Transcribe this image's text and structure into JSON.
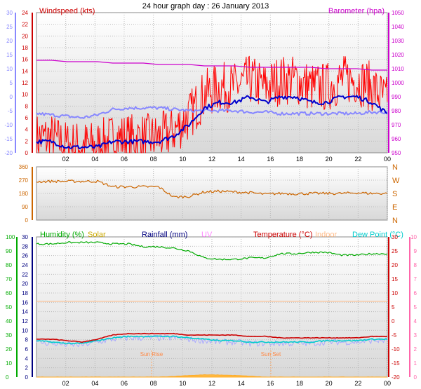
{
  "title": "24 hour graph day : 26 January 2013",
  "x_ticks": [
    "02",
    "04",
    "06",
    "08",
    "10",
    "12",
    "14",
    "16",
    "18",
    "20",
    "22",
    "00"
  ],
  "colors": {
    "wind": "#ff0000",
    "gust": "#dd0000",
    "avg_wind": "#0000cc",
    "baro": "#cc00cc",
    "temp_left": "#8888ff",
    "direction": "#cc6600",
    "humidity": "#00aa00",
    "solar": "#ffaa22",
    "rain": "#000080",
    "uv": "#ff88ff",
    "temperature": "#cc0000",
    "indoor": "#ffbb88",
    "dewpoint": "#00cccc",
    "feels": "#aaaaff",
    "grid": "#bbbbbb"
  },
  "panel1": {
    "left_label": "Windspeed (kts)",
    "right_label": "Barometer (hpa)",
    "left_ticks": [
      "0",
      "2",
      "4",
      "6",
      "8",
      "10",
      "12",
      "14",
      "16",
      "18",
      "20",
      "22",
      "24"
    ],
    "far_left_ticks": [
      "-20",
      "-15",
      "-10",
      "-5",
      "0",
      "5",
      "10",
      "15",
      "20",
      "25",
      "30"
    ],
    "right_ticks": [
      "950",
      "960",
      "970",
      "980",
      "990",
      "1000",
      "1010",
      "1020",
      "1030",
      "1040",
      "1050"
    ]
  },
  "panel2": {
    "left_ticks": [
      "0",
      "90",
      "180",
      "270",
      "360"
    ],
    "right_labels": [
      "N",
      "E",
      "S",
      "W",
      "N"
    ]
  },
  "panel3": {
    "legend": {
      "humidity": "Humidity (%)",
      "solar": "Solar",
      "rainfall": "Rainfall (mm)",
      "uv": "UV",
      "temperature": "Temperature (°C)",
      "indoor": "Indoor",
      "dewpoint": "Dew Point (°C)"
    },
    "humidity_ticks": [
      "0",
      "10",
      "20",
      "30",
      "40",
      "50",
      "60",
      "70",
      "80",
      "90",
      "100"
    ],
    "rain_ticks": [
      "0",
      "2",
      "4",
      "6",
      "8",
      "10",
      "12",
      "14",
      "16",
      "18",
      "20",
      "22",
      "24",
      "26",
      "28",
      "30"
    ],
    "temp_ticks": [
      "-20",
      "-15",
      "-10",
      "-5",
      "0",
      "5",
      "10",
      "15",
      "20",
      "25",
      "30"
    ],
    "uv_ticks": [
      "0",
      "1",
      "2",
      "3",
      "4",
      "5",
      "6",
      "7",
      "8",
      "9",
      "10"
    ],
    "sun_rise": "Sun Rise",
    "sun_set": "Sun Set"
  },
  "chart_data": [
    {
      "type": "line",
      "x": [
        "01",
        "02",
        "03",
        "04",
        "05",
        "06",
        "07",
        "08",
        "09",
        "10",
        "11",
        "12",
        "13",
        "14",
        "15",
        "16",
        "17",
        "18",
        "19",
        "20",
        "21",
        "22",
        "23",
        "00"
      ],
      "series": [
        {
          "name": "Windspeed (kts)",
          "values": [
            2,
            2,
            1,
            1,
            1,
            2,
            2,
            2,
            2,
            3,
            5,
            8,
            9,
            9,
            10,
            9,
            10,
            10,
            9,
            9,
            10,
            10,
            9,
            7
          ]
        },
        {
          "name": "Barometer (hpa)",
          "values": [
            1016,
            1016,
            1015,
            1015,
            1015,
            1014,
            1014,
            1014,
            1013,
            1013,
            1013,
            1012,
            1012,
            1012,
            1011,
            1011,
            1011,
            1011,
            1011,
            1010,
            1010,
            1010,
            1009,
            1009
          ]
        }
      ],
      "ylim": [
        0,
        25
      ]
    },
    {
      "type": "line",
      "x": [
        "01",
        "02",
        "03",
        "04",
        "05",
        "06",
        "07",
        "08",
        "09",
        "10",
        "11",
        "12",
        "13",
        "14",
        "15",
        "16",
        "17",
        "18",
        "19",
        "20",
        "21",
        "22",
        "23",
        "00"
      ],
      "series": [
        {
          "name": "Wind direction",
          "values": [
            260,
            262,
            262,
            262,
            262,
            225,
            225,
            225,
            225,
            155,
            160,
            190,
            195,
            190,
            185,
            175,
            180,
            178,
            180,
            180,
            180,
            185,
            180,
            180
          ]
        }
      ],
      "ylim": [
        0,
        360
      ]
    },
    {
      "type": "line",
      "x": [
        "01",
        "02",
        "03",
        "04",
        "05",
        "06",
        "07",
        "08",
        "09",
        "10",
        "11",
        "12",
        "13",
        "14",
        "15",
        "16",
        "17",
        "18",
        "19",
        "20",
        "21",
        "22",
        "23",
        "00"
      ],
      "series": [
        {
          "name": "Humidity (%)",
          "values": [
            95,
            95,
            96,
            96,
            96,
            95,
            95,
            93,
            93,
            92,
            90,
            85,
            84,
            84,
            85,
            85,
            88,
            88,
            89,
            89,
            87,
            87,
            88,
            88
          ]
        },
        {
          "name": "Temperature (°C)",
          "values": [
            -6.5,
            -6.5,
            -7,
            -7.5,
            -6.5,
            -5,
            -4.5,
            -4.5,
            -4.5,
            -4.5,
            -5,
            -5,
            -5,
            -5,
            -5.5,
            -5.5,
            -6,
            -6,
            -6,
            -6,
            -6,
            -6,
            -5.5,
            -5.5
          ]
        },
        {
          "name": "Dew Point (°C)",
          "values": [
            -7,
            -7.5,
            -8,
            -8,
            -7,
            -6,
            -5.5,
            -5.5,
            -5.5,
            -5.5,
            -6,
            -6.5,
            -7,
            -7,
            -7.5,
            -7.5,
            -7.5,
            -7.5,
            -7.5,
            -7,
            -7,
            -7,
            -6.5,
            -6.5
          ]
        },
        {
          "name": "Solar",
          "values": [
            0,
            0,
            0,
            0,
            0,
            0,
            0,
            0,
            0,
            0.5,
            1.2,
            1.6,
            1.5,
            1.2,
            0.6,
            0,
            0,
            0,
            0,
            0,
            0,
            0,
            0,
            0
          ]
        }
      ],
      "ylim": [
        0,
        100
      ]
    }
  ]
}
